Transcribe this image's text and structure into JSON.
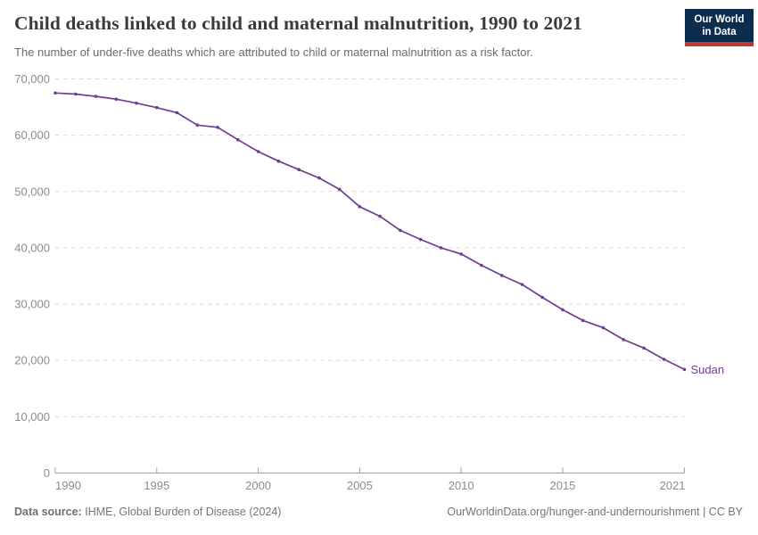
{
  "header": {
    "title": "Child deaths linked to child and maternal malnutrition, 1990 to 2021",
    "subtitle": "The number of under-five deaths which are attributed to child or maternal malnutrition as a risk factor.",
    "logo": {
      "line1": "Our World",
      "line2": "in Data",
      "bg_color": "#0d2d4e",
      "accent_color": "#c0372f"
    }
  },
  "chart_data": {
    "type": "line",
    "title": "Child deaths linked to child and maternal malnutrition, 1990 to 2021",
    "xlabel": "",
    "ylabel": "",
    "xlim": [
      1990,
      2021
    ],
    "ylim": [
      0,
      70000
    ],
    "grid": "horizontal-dashed",
    "legend_position": "end-of-line-label",
    "x_ticks": [
      1990,
      1995,
      2000,
      2005,
      2010,
      2015,
      2021
    ],
    "y_ticks": [
      0,
      10000,
      20000,
      30000,
      40000,
      50000,
      60000,
      70000
    ],
    "series": [
      {
        "name": "Sudan",
        "color": "#6d3e91",
        "x": [
          1990,
          1991,
          1992,
          1993,
          1994,
          1995,
          1996,
          1997,
          1998,
          1999,
          2000,
          2001,
          2002,
          2003,
          2004,
          2005,
          2006,
          2007,
          2008,
          2009,
          2010,
          2011,
          2012,
          2013,
          2014,
          2015,
          2016,
          2017,
          2018,
          2019,
          2020,
          2021
        ],
        "values": [
          67500,
          67300,
          66900,
          66400,
          65700,
          64900,
          64000,
          61800,
          61400,
          59200,
          57100,
          55400,
          53900,
          52400,
          50400,
          47300,
          45600,
          43100,
          41500,
          40000,
          38900,
          36900,
          35100,
          33500,
          31200,
          29000,
          27100,
          25800,
          23700,
          22200,
          20200,
          18400
        ]
      }
    ],
    "end_label": "Sudan",
    "colors": {
      "gridline": "#d9d9d9",
      "axis": "#a0a0a0",
      "tick_label": "#8c8c8c"
    }
  },
  "footer": {
    "source_label": "Data source:",
    "source_value": "IHME, Global Burden of Disease (2024)",
    "license": "OurWorldinData.org/hunger-and-undernourishment | CC BY"
  }
}
